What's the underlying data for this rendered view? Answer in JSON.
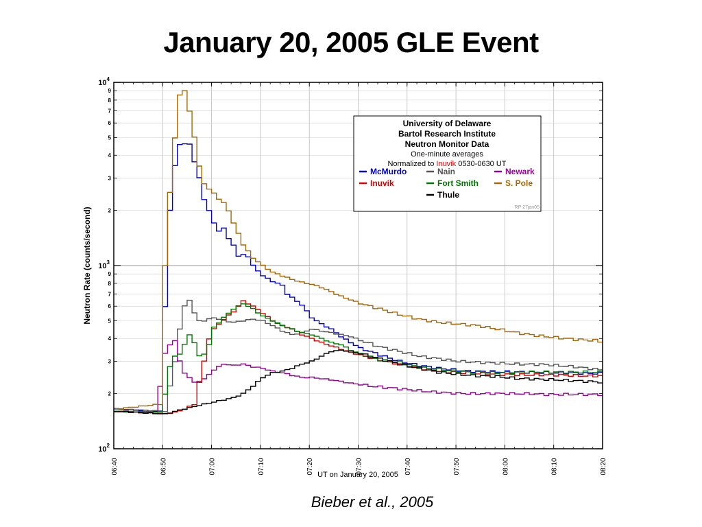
{
  "slide": {
    "title": "January 20, 2005 GLE Event",
    "citation": "Bieber et al., 2005"
  },
  "chart_data": {
    "type": "line",
    "step": true,
    "xlabel": "UT on January 20, 2005",
    "ylabel": "Neutron Rate (counts/second)",
    "y_scale": "log",
    "ylim": [
      100,
      10000
    ],
    "xlim": [
      "06:40",
      "08:20"
    ],
    "x_ticks": [
      "06:40",
      "06:50",
      "07:00",
      "07:10",
      "07:20",
      "07:30",
      "07:40",
      "07:50",
      "08:00",
      "08:10",
      "08:20"
    ],
    "y_major_ticks": [
      {
        "value": 100,
        "base": "10",
        "exp": "2"
      },
      {
        "value": 1000,
        "base": "10",
        "exp": "3"
      },
      {
        "value": 10000,
        "base": "10",
        "exp": "4"
      }
    ],
    "y_minor_ticks": [
      2,
      3,
      4,
      5,
      6,
      7,
      8,
      9
    ],
    "grid": true,
    "legend": {
      "placement": "top-right",
      "header": [
        "University of Delaware",
        "Bartol Research Institute",
        "Neutron Monitor Data"
      ],
      "subheader": "One-minute averages",
      "norm_prefix": "Normalized to ",
      "norm_station": "Inuvik",
      "norm_suffix": " 0530-0630 UT",
      "footer": "RP 27jan05"
    },
    "series": [
      {
        "name": "McMurdo",
        "color": "#0000cc",
        "points": [
          [
            0,
            165
          ],
          [
            9,
            160
          ],
          [
            10,
            600
          ],
          [
            11,
            2000
          ],
          [
            12,
            3500
          ],
          [
            13,
            4600
          ],
          [
            15,
            4600
          ],
          [
            16,
            3700
          ],
          [
            17,
            3000
          ],
          [
            18,
            2300
          ],
          [
            19,
            2000
          ],
          [
            20,
            1700
          ],
          [
            21,
            1550
          ],
          [
            22,
            1600
          ],
          [
            23,
            1400
          ],
          [
            24,
            1300
          ],
          [
            25,
            1120
          ],
          [
            26,
            1150
          ],
          [
            27,
            1120
          ],
          [
            28,
            1000
          ],
          [
            30,
            880
          ],
          [
            32,
            820
          ],
          [
            34,
            780
          ],
          [
            35,
            700
          ],
          [
            38,
            610
          ],
          [
            40,
            520
          ],
          [
            42,
            480
          ],
          [
            44,
            450
          ],
          [
            46,
            410
          ],
          [
            48,
            380
          ],
          [
            50,
            355
          ],
          [
            54,
            325
          ],
          [
            58,
            300
          ],
          [
            62,
            285
          ],
          [
            66,
            275
          ],
          [
            72,
            265
          ],
          [
            78,
            263
          ],
          [
            84,
            262
          ],
          [
            90,
            260
          ],
          [
            96,
            258
          ],
          [
            100,
            258
          ]
        ]
      },
      {
        "name": "Nain",
        "color": "#555555",
        "points": [
          [
            0,
            165
          ],
          [
            10,
            160
          ],
          [
            12,
            300
          ],
          [
            13,
            450
          ],
          [
            14,
            600
          ],
          [
            15,
            650
          ],
          [
            16,
            550
          ],
          [
            17,
            500
          ],
          [
            18,
            500
          ],
          [
            20,
            520
          ],
          [
            22,
            500
          ],
          [
            24,
            490
          ],
          [
            26,
            500
          ],
          [
            28,
            510
          ],
          [
            30,
            500
          ],
          [
            32,
            470
          ],
          [
            34,
            440
          ],
          [
            36,
            420
          ],
          [
            38,
            430
          ],
          [
            40,
            450
          ],
          [
            42,
            440
          ],
          [
            44,
            430
          ],
          [
            46,
            420
          ],
          [
            48,
            410
          ],
          [
            50,
            390
          ],
          [
            54,
            360
          ],
          [
            58,
            340
          ],
          [
            62,
            320
          ],
          [
            66,
            310
          ],
          [
            70,
            300
          ],
          [
            76,
            295
          ],
          [
            82,
            290
          ],
          [
            88,
            288
          ],
          [
            94,
            280
          ],
          [
            100,
            268
          ]
        ]
      },
      {
        "name": "Newark",
        "color": "#990099",
        "points": [
          [
            0,
            160
          ],
          [
            8,
            158
          ],
          [
            9,
            220
          ],
          [
            10,
            330
          ],
          [
            11,
            370
          ],
          [
            12,
            390
          ],
          [
            13,
            300
          ],
          [
            14,
            260
          ],
          [
            16,
            230
          ],
          [
            18,
            240
          ],
          [
            20,
            270
          ],
          [
            22,
            290
          ],
          [
            24,
            285
          ],
          [
            26,
            290
          ],
          [
            28,
            280
          ],
          [
            30,
            275
          ],
          [
            32,
            265
          ],
          [
            34,
            260
          ],
          [
            36,
            252
          ],
          [
            38,
            245
          ],
          [
            40,
            245
          ],
          [
            44,
            238
          ],
          [
            48,
            228
          ],
          [
            52,
            220
          ],
          [
            56,
            215
          ],
          [
            60,
            210
          ],
          [
            64,
            205
          ],
          [
            68,
            202
          ],
          [
            72,
            200
          ],
          [
            76,
            200
          ],
          [
            80,
            200
          ],
          [
            84,
            200
          ],
          [
            88,
            198
          ],
          [
            92,
            198
          ],
          [
            96,
            198
          ],
          [
            100,
            198
          ]
        ]
      },
      {
        "name": "Inuvik",
        "color": "#dd0000",
        "points": [
          [
            0,
            160
          ],
          [
            10,
            155
          ],
          [
            12,
            158
          ],
          [
            14,
            165
          ],
          [
            16,
            175
          ],
          [
            17,
            230
          ],
          [
            18,
            300
          ],
          [
            19,
            400
          ],
          [
            20,
            450
          ],
          [
            22,
            510
          ],
          [
            24,
            560
          ],
          [
            25,
            600
          ],
          [
            26,
            640
          ],
          [
            27,
            620
          ],
          [
            28,
            600
          ],
          [
            30,
            550
          ],
          [
            32,
            500
          ],
          [
            34,
            470
          ],
          [
            36,
            450
          ],
          [
            38,
            420
          ],
          [
            40,
            400
          ],
          [
            42,
            380
          ],
          [
            44,
            365
          ],
          [
            46,
            350
          ],
          [
            48,
            335
          ],
          [
            50,
            325
          ],
          [
            54,
            305
          ],
          [
            58,
            290
          ],
          [
            62,
            275
          ],
          [
            66,
            265
          ],
          [
            72,
            260
          ],
          [
            78,
            255
          ],
          [
            84,
            253
          ],
          [
            90,
            253
          ],
          [
            96,
            250
          ],
          [
            100,
            250
          ]
        ]
      },
      {
        "name": "Fort Smith",
        "color": "#007700",
        "points": [
          [
            0,
            160
          ],
          [
            9,
            158
          ],
          [
            10,
            200
          ],
          [
            11,
            280
          ],
          [
            12,
            320
          ],
          [
            13,
            330
          ],
          [
            14,
            370
          ],
          [
            15,
            420
          ],
          [
            16,
            380
          ],
          [
            17,
            320
          ],
          [
            18,
            330
          ],
          [
            19,
            370
          ],
          [
            20,
            460
          ],
          [
            22,
            520
          ],
          [
            24,
            580
          ],
          [
            26,
            620
          ],
          [
            27,
            600
          ],
          [
            28,
            580
          ],
          [
            30,
            530
          ],
          [
            32,
            500
          ],
          [
            34,
            470
          ],
          [
            36,
            450
          ],
          [
            38,
            430
          ],
          [
            40,
            420
          ],
          [
            42,
            400
          ],
          [
            44,
            380
          ],
          [
            46,
            370
          ],
          [
            48,
            345
          ],
          [
            50,
            330
          ],
          [
            54,
            305
          ],
          [
            58,
            295
          ],
          [
            62,
            278
          ],
          [
            66,
            270
          ],
          [
            72,
            262
          ],
          [
            78,
            260
          ],
          [
            84,
            262
          ],
          [
            90,
            262
          ],
          [
            96,
            262
          ],
          [
            100,
            262
          ]
        ]
      },
      {
        "name": "S. Pole",
        "color": "#aa6600",
        "points": [
          [
            0,
            165
          ],
          [
            9,
            175
          ],
          [
            10,
            1000
          ],
          [
            11,
            2500
          ],
          [
            12,
            5000
          ],
          [
            13,
            8500
          ],
          [
            14,
            9000
          ],
          [
            15,
            7000
          ],
          [
            16,
            5000
          ],
          [
            17,
            3500
          ],
          [
            18,
            2800
          ],
          [
            19,
            2600
          ],
          [
            20,
            2500
          ],
          [
            21,
            2300
          ],
          [
            22,
            2200
          ],
          [
            23,
            2000
          ],
          [
            24,
            1700
          ],
          [
            25,
            1500
          ],
          [
            26,
            1300
          ],
          [
            28,
            1100
          ],
          [
            30,
            1000
          ],
          [
            32,
            920
          ],
          [
            34,
            880
          ],
          [
            36,
            840
          ],
          [
            38,
            810
          ],
          [
            40,
            790
          ],
          [
            42,
            760
          ],
          [
            44,
            720
          ],
          [
            46,
            680
          ],
          [
            48,
            650
          ],
          [
            50,
            620
          ],
          [
            54,
            580
          ],
          [
            58,
            540
          ],
          [
            62,
            510
          ],
          [
            66,
            490
          ],
          [
            70,
            480
          ],
          [
            74,
            470
          ],
          [
            78,
            450
          ],
          [
            82,
            430
          ],
          [
            86,
            415
          ],
          [
            90,
            405
          ],
          [
            94,
            395
          ],
          [
            98,
            390
          ],
          [
            100,
            380
          ]
        ]
      },
      {
        "name": "Thule",
        "color": "#000000",
        "points": [
          [
            0,
            160
          ],
          [
            10,
            155
          ],
          [
            12,
            160
          ],
          [
            14,
            165
          ],
          [
            16,
            170
          ],
          [
            18,
            175
          ],
          [
            20,
            180
          ],
          [
            24,
            190
          ],
          [
            26,
            200
          ],
          [
            28,
            220
          ],
          [
            30,
            245
          ],
          [
            32,
            260
          ],
          [
            34,
            265
          ],
          [
            36,
            275
          ],
          [
            38,
            290
          ],
          [
            40,
            300
          ],
          [
            42,
            320
          ],
          [
            44,
            340
          ],
          [
            46,
            345
          ],
          [
            48,
            340
          ],
          [
            50,
            330
          ],
          [
            52,
            320
          ],
          [
            54,
            310
          ],
          [
            56,
            300
          ],
          [
            58,
            290
          ],
          [
            62,
            275
          ],
          [
            66,
            262
          ],
          [
            70,
            255
          ],
          [
            74,
            250
          ],
          [
            78,
            248
          ],
          [
            82,
            242
          ],
          [
            86,
            240
          ],
          [
            90,
            238
          ],
          [
            94,
            235
          ],
          [
            98,
            232
          ],
          [
            100,
            230
          ]
        ]
      }
    ]
  }
}
